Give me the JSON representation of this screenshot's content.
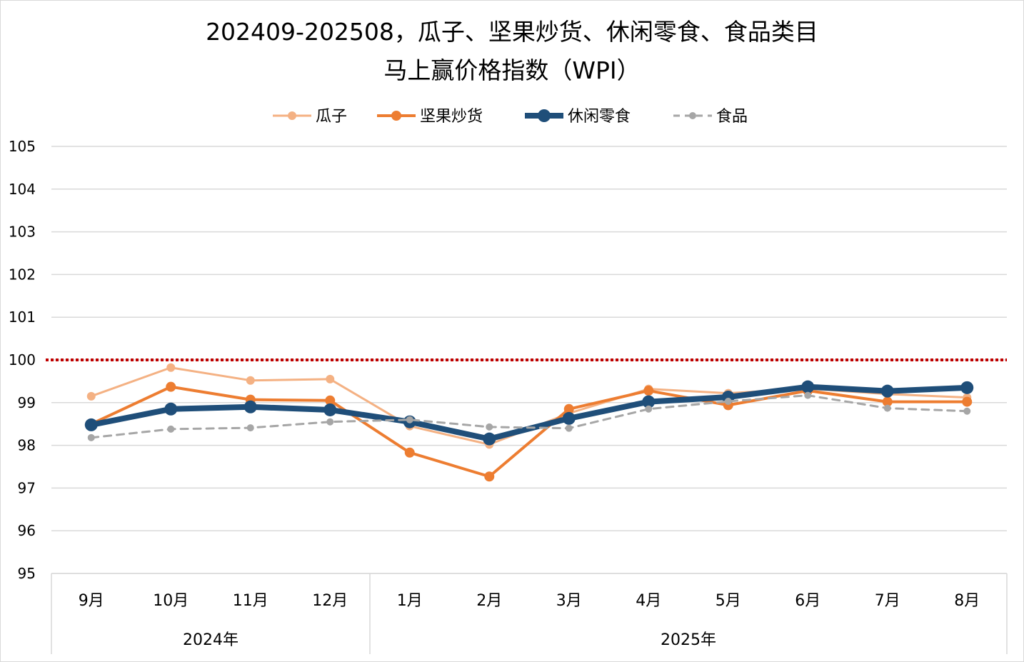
{
  "chart_data": {
    "type": "line",
    "title_line1": "202409-202508，瓜子、坚果炒货、休闲零食、食品类目",
    "title_line2": "马上赢价格指数（WPI）",
    "categories": [
      "9月",
      "10月",
      "11月",
      "12月",
      "1月",
      "2月",
      "3月",
      "4月",
      "5月",
      "6月",
      "7月",
      "8月"
    ],
    "year_groups": [
      {
        "label": "2024年",
        "count": 4
      },
      {
        "label": "2025年",
        "count": 8
      }
    ],
    "y_ticks": [
      "95",
      "96",
      "97",
      "98",
      "99",
      "100",
      "101",
      "102",
      "103",
      "104",
      "105"
    ],
    "ylim": [
      95,
      105
    ],
    "grid": true,
    "reference_line": {
      "value": 100,
      "color": "#c00000",
      "style": "dotted"
    },
    "legend_position": "top",
    "series": [
      {
        "name": "瓜子",
        "color": "#f4b183",
        "width": 3,
        "marker": 6,
        "dash": "",
        "values": [
          99.15,
          99.82,
          99.52,
          99.55,
          98.45,
          98.02,
          98.75,
          99.32,
          99.22,
          99.33,
          99.2,
          99.12
        ]
      },
      {
        "name": "坚果炒货",
        "color": "#ed7d31",
        "width": 4,
        "marker": 7,
        "dash": "",
        "values": [
          98.5,
          99.37,
          99.07,
          99.05,
          97.83,
          97.27,
          98.85,
          99.28,
          98.94,
          99.28,
          99.02,
          99.02
        ]
      },
      {
        "name": "休闲零食",
        "color": "#1f4e79",
        "width": 8,
        "marker": 9,
        "dash": "",
        "values": [
          98.48,
          98.85,
          98.9,
          98.83,
          98.55,
          98.15,
          98.63,
          99.02,
          99.13,
          99.37,
          99.27,
          99.35
        ]
      },
      {
        "name": "食品",
        "color": "#a6a6a6",
        "width": 3,
        "marker": 5,
        "dash": "10,8",
        "values": [
          98.18,
          98.38,
          98.41,
          98.55,
          98.6,
          98.43,
          98.4,
          98.85,
          99.03,
          99.17,
          98.87,
          98.8
        ]
      }
    ]
  }
}
